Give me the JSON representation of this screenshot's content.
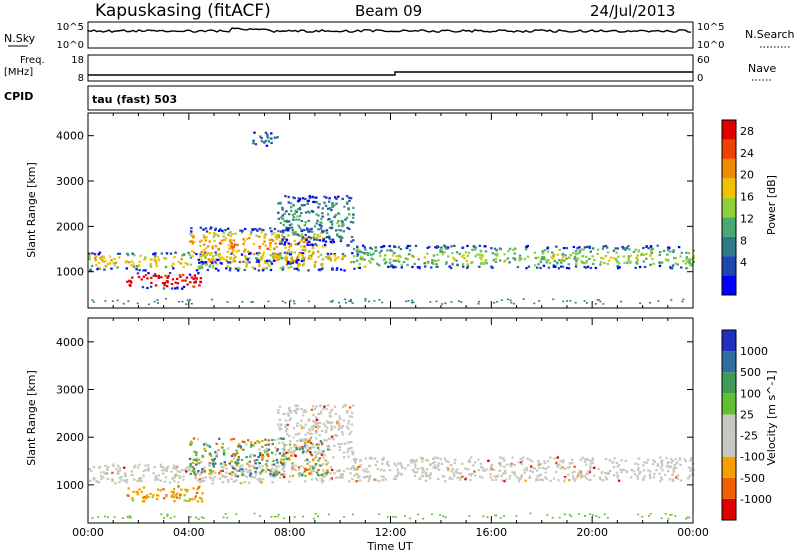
{
  "header": {
    "station": "Kapuskasing (fitACF)",
    "beam": "Beam 09",
    "date": "24/Jul/2013"
  },
  "top_panels": {
    "nsky_label": "N.Sky",
    "nsearch_label": "N.Search",
    "noise_ticks": [
      "10^5",
      "10^0"
    ],
    "freq_label": "Freq.",
    "freq_unit": "[MHz]",
    "freq_ticks": [
      "18",
      "8"
    ],
    "nave_label": "Nave",
    "nave_ticks": [
      "60",
      "0"
    ],
    "cpid_label": "CPID",
    "cpid_value": "tau (fast) 503"
  },
  "chart_data": [
    {
      "type": "heatmap",
      "name": "power",
      "ylabel": "Slant Range [km]",
      "yticks": [
        "4000",
        "3000",
        "2000",
        "1000"
      ],
      "ylim": [
        200,
        4500
      ],
      "xlim": [
        0,
        24
      ],
      "colorbar_label": "Power [dB]",
      "colorbar_ticks": [
        "28",
        "24",
        "20",
        "16",
        "12",
        "8",
        "4"
      ],
      "colorscale": [
        "#0000ff",
        "#1d48b0",
        "#2f7a85",
        "#49a872",
        "#8ed13a",
        "#f2c200",
        "#f08a00",
        "#ee4400",
        "#e00000"
      ],
      "bands": [
        {
          "t0": 0,
          "t1": 11,
          "r0": 1050,
          "r1": 1450,
          "intensity": 0.5
        },
        {
          "t0": 1.5,
          "t1": 4.5,
          "r0": 650,
          "r1": 1000,
          "intensity": 1.0
        },
        {
          "t0": 4,
          "t1": 9.5,
          "r0": 1200,
          "r1": 2000,
          "intensity": 0.55
        },
        {
          "t0": 7.5,
          "t1": 10.5,
          "r0": 1600,
          "r1": 2700,
          "intensity": 0.2
        },
        {
          "t0": 10.5,
          "t1": 24,
          "r0": 1100,
          "r1": 1600,
          "intensity": 0.35
        },
        {
          "t0": 6.5,
          "t1": 7.5,
          "r0": 3800,
          "r1": 4100,
          "intensity": 0.15
        }
      ]
    },
    {
      "type": "heatmap",
      "name": "velocity",
      "ylabel": "Slant Range [km]",
      "yticks": [
        "4000",
        "3000",
        "2000",
        "1000"
      ],
      "ylim": [
        200,
        4500
      ],
      "xlim": [
        0,
        24
      ],
      "xticks": [
        "00:00",
        "04:00",
        "08:00",
        "12:00",
        "16:00",
        "20:00",
        "00:00"
      ],
      "xlabel": "Time UT",
      "colorbar_label": "Velocity [m s^-1]",
      "colorbar_ticks": [
        "1000",
        "500",
        "100",
        "25",
        "-25",
        "-100",
        "-500",
        "-1000"
      ],
      "colorscale": [
        "#e00000",
        "#f06000",
        "#f5a000",
        "#c8c8c0",
        "#c8c8c0",
        "#60c030",
        "#3f9b55",
        "#2f6ea0",
        "#2030c0"
      ],
      "bands": [
        {
          "t0": 0,
          "t1": 11,
          "r0": 1050,
          "r1": 1450,
          "kind": "ground"
        },
        {
          "t0": 1.5,
          "t1": 4.5,
          "r0": 650,
          "r1": 1000,
          "kind": "neg"
        },
        {
          "t0": 4,
          "t1": 9.5,
          "r0": 1200,
          "r1": 2000,
          "kind": "mixed"
        },
        {
          "t0": 7.5,
          "t1": 10.5,
          "r0": 1600,
          "r1": 2700,
          "kind": "ground"
        },
        {
          "t0": 10.5,
          "t1": 24,
          "r0": 1100,
          "r1": 1600,
          "kind": "ground"
        }
      ]
    }
  ]
}
